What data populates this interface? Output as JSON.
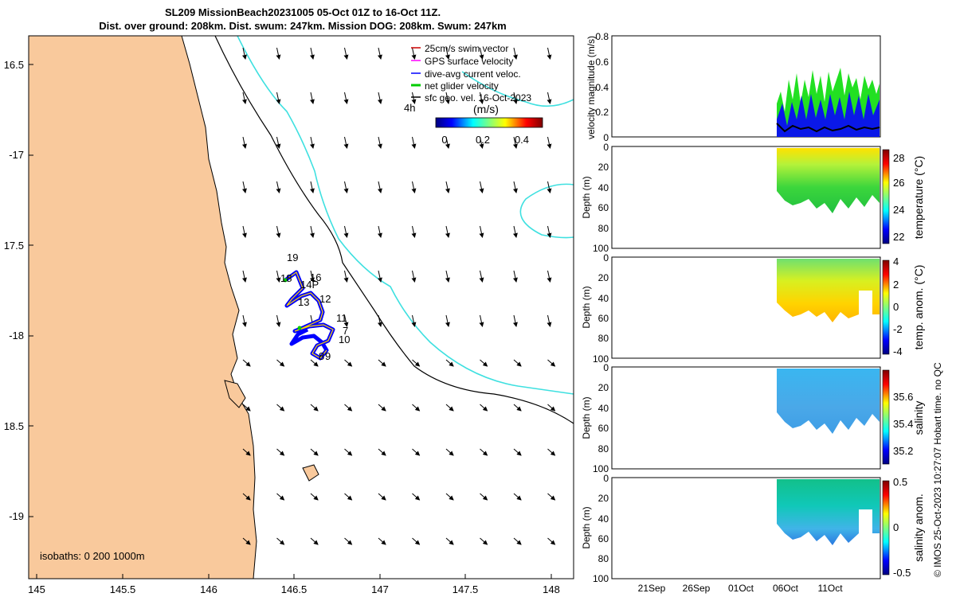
{
  "title": {
    "line1": "SL209 MissionBeach20231005 05-Oct 01Z to 16-Oct 11Z.",
    "line2": "Dist. over ground: 208km. Dist. swum: 247km. Mission DOG: 208km. Swum: 247km"
  },
  "map": {
    "lat_ticks": [
      "16.5",
      "-17",
      "17.5",
      "-18",
      "18.5",
      "-19"
    ],
    "lon_ticks": [
      "145",
      "145.5",
      "146",
      "146.5",
      "147",
      "147.5",
      "148"
    ],
    "isobaths_label": "isobaths: 0   200  1000m",
    "legend": [
      {
        "label": "25cm/s swim vector",
        "color": "#cc0000"
      },
      {
        "label": "GPS surface velocity",
        "color": "#ff00ff"
      },
      {
        "label": "dive-avg current veloc.",
        "color": "#0000ff"
      },
      {
        "label": "net glider velocity",
        "color": "#00cc00"
      },
      {
        "label": "sfc geo. vel. 16-Oct-2023",
        "color": "#000000"
      }
    ],
    "time_label": "4h",
    "colorbar": {
      "label": "(m/s)",
      "ticks": [
        "0",
        "0.2",
        "0.4"
      ]
    },
    "track_labels": [
      "19",
      "18",
      "14P",
      "16",
      "13",
      "12",
      "11",
      "7",
      "10",
      "8",
      "9"
    ],
    "colors": {
      "land": "#f9c99c",
      "isobath_200": "#3ee0e0",
      "isobath_1000": "#000000",
      "track": "#0000ff",
      "track_core": "#ffd700"
    }
  },
  "panels": {
    "velocity": {
      "ylabel": "velocity magnitude (m/s)",
      "yticks": [
        "0",
        "0.2",
        "0.4",
        "0.6",
        "0.8"
      ]
    },
    "temperature": {
      "ylabel": "Depth (m)",
      "yticks": [
        "0",
        "20",
        "40",
        "60",
        "80",
        "100"
      ],
      "cb_label": "temperature (°C)",
      "cb_ticks": [
        "28",
        "26",
        "24",
        "22"
      ]
    },
    "temp_anom": {
      "ylabel": "Depth (m)",
      "yticks": [
        "0",
        "20",
        "40",
        "60",
        "80",
        "100"
      ],
      "cb_label": "temp. anom. (°C)",
      "cb_ticks": [
        "4",
        "2",
        "0",
        "-2",
        "-4"
      ]
    },
    "salinity": {
      "ylabel": "Depth (m)",
      "yticks": [
        "0",
        "20",
        "40",
        "60",
        "80",
        "100"
      ],
      "cb_label": "salinity",
      "cb_ticks": [
        "35.6",
        "35.4",
        "35.2"
      ]
    },
    "sal_anom": {
      "ylabel": "Depth (m)",
      "yticks": [
        "0",
        "20",
        "40",
        "60",
        "80",
        "100"
      ],
      "cb_label": "salinity anom.",
      "cb_ticks": [
        "0.5",
        "0",
        "-0.5"
      ]
    },
    "xticks": [
      "21Sep",
      "26Sep",
      "01Oct",
      "06Oct",
      "11Oct"
    ]
  },
  "footer": "© IMOS 25-Oct-2023 10:27:07 Hobart time. no QC"
}
